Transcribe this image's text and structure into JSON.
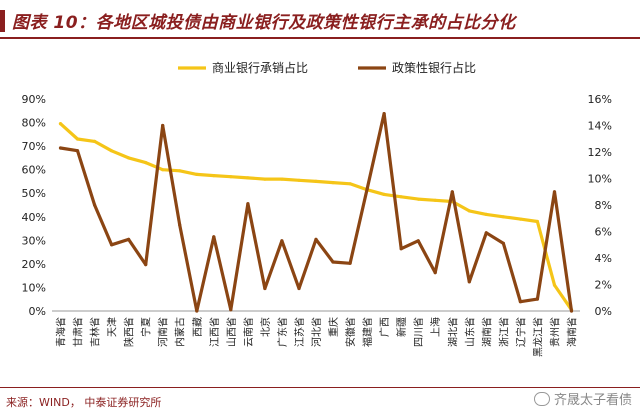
{
  "header": {
    "title": "图表 10：各地区城投债由商业银行及政策性银行主承的占比分化"
  },
  "footer": {
    "source": "来源：WIND， 中泰证券研究所",
    "watermark": "齐晟太子看债"
  },
  "colors": {
    "accent": "#8a1f1f",
    "commercial": "#f5c518",
    "policy": "#8b4513"
  },
  "chart_data": {
    "type": "line",
    "title": "",
    "legend_position": "top",
    "grid": false,
    "categories": [
      "青海省",
      "甘肃省",
      "吉林省",
      "天津",
      "陕西省",
      "宁夏",
      "河南省",
      "内蒙古",
      "西藏",
      "江西省",
      "山西省",
      "云南省",
      "北京",
      "广东省",
      "江苏省",
      "河北省",
      "重庆",
      "安徽省",
      "福建省",
      "广西",
      "新疆",
      "四川省",
      "上海",
      "湖北省",
      "山东省",
      "湖南省",
      "浙江省",
      "辽宁省",
      "黑龙江省",
      "贵州省",
      "海南省"
    ],
    "y_left": {
      "min": 0,
      "max": 90,
      "step": 10,
      "unit": "%"
    },
    "y_right": {
      "min": 0,
      "max": 16,
      "step": 2,
      "unit": "%"
    },
    "series": [
      {
        "name": "商业银行承销占比",
        "axis": "left",
        "values": [
          79.5,
          73.0,
          72.0,
          68.0,
          65.0,
          63.0,
          60.0,
          59.5,
          58.0,
          57.5,
          57.0,
          56.5,
          56.0,
          56.0,
          55.5,
          55.0,
          54.5,
          54.0,
          51.5,
          49.5,
          48.5,
          47.5,
          47.0,
          46.5,
          42.5,
          41.0,
          40.0,
          39.0,
          38.0,
          11.0,
          0.5
        ]
      },
      {
        "name": "政策性银行占比",
        "axis": "right",
        "values": [
          12.3,
          12.1,
          8.0,
          5.0,
          5.4,
          3.5,
          14.0,
          6.5,
          0.0,
          5.6,
          0.1,
          8.1,
          1.7,
          5.3,
          1.7,
          5.4,
          3.7,
          3.6,
          9.2,
          14.9,
          4.7,
          5.3,
          2.9,
          9.0,
          2.2,
          5.9,
          5.1,
          0.7,
          0.9,
          9.0,
          0.0
        ]
      }
    ]
  }
}
